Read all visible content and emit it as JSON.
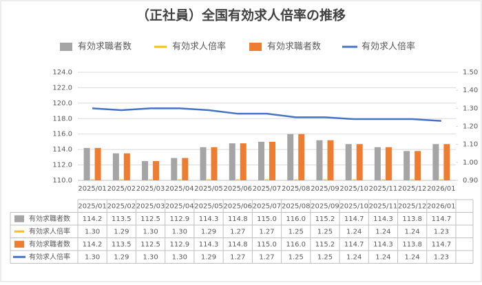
{
  "chart_data": {
    "type": "bar",
    "title": "（正社員）全国有効求人倍率の推移",
    "categories": [
      "2025/01",
      "2025/02",
      "2025/03",
      "2025/04",
      "2025/05",
      "2025/06",
      "2025/07",
      "2025/08",
      "2025/09",
      "2025/10",
      "2025/11",
      "2025/12",
      "2026/01"
    ],
    "series": [
      {
        "name": "有効求職者数",
        "color": "#a5a5a5",
        "type": "bar",
        "values": [
          114.2,
          113.5,
          112.5,
          112.9,
          114.3,
          114.8,
          115.0,
          116.0,
          115.2,
          114.7,
          114.3,
          113.8,
          114.7
        ],
        "value_labels": [
          "114.2",
          "113.5",
          "112.5",
          "112.9",
          "114.3",
          "114.8",
          "115.0",
          "116.0",
          "115.2",
          "114.7",
          "114.3",
          "113.8",
          "114.7"
        ]
      },
      {
        "name": "有効求人倍率",
        "color": "#ffc000",
        "type": "bar",
        "values": [
          1.3,
          1.29,
          1.3,
          1.3,
          1.29,
          1.27,
          1.27,
          1.25,
          1.25,
          1.24,
          1.24,
          1.24,
          1.23
        ],
        "value_labels": [
          "1.30",
          "1.29",
          "1.30",
          "1.30",
          "1.29",
          "1.27",
          "1.27",
          "1.25",
          "1.25",
          "1.24",
          "1.24",
          "1.24",
          "1.23"
        ]
      },
      {
        "name": "有効求職者数",
        "color": "#ed7d31",
        "type": "bar",
        "values": [
          114.2,
          113.5,
          112.5,
          112.9,
          114.3,
          114.8,
          115.0,
          116.0,
          115.2,
          114.7,
          114.3,
          113.8,
          114.7
        ],
        "value_labels": [
          "114.2",
          "113.5",
          "112.5",
          "112.9",
          "114.3",
          "114.8",
          "115.0",
          "116.0",
          "115.2",
          "114.7",
          "114.3",
          "113.8",
          "114.7"
        ]
      },
      {
        "name": "有効求人倍率",
        "color": "#4472c4",
        "type": "line",
        "axis": "y2",
        "values": [
          1.3,
          1.29,
          1.3,
          1.3,
          1.29,
          1.27,
          1.27,
          1.25,
          1.25,
          1.24,
          1.24,
          1.24,
          1.23
        ],
        "value_labels": [
          "1.30",
          "1.29",
          "1.30",
          "1.30",
          "1.29",
          "1.27",
          "1.27",
          "1.25",
          "1.25",
          "1.24",
          "1.24",
          "1.24",
          "1.23"
        ]
      }
    ],
    "ylim": [
      110,
      124
    ],
    "yticks": [
      {
        "value": 110,
        "label": "110.0"
      },
      {
        "value": 112,
        "label": "112.0"
      },
      {
        "value": 114,
        "label": "114.0"
      },
      {
        "value": 116,
        "label": "116.0"
      },
      {
        "value": 118,
        "label": "118.0"
      },
      {
        "value": 120,
        "label": "120.0"
      },
      {
        "value": 122,
        "label": "122.0"
      },
      {
        "value": 124,
        "label": "124.0"
      }
    ],
    "y2lim": [
      0.9,
      1.5
    ],
    "y2ticks": [
      {
        "value": 0.9,
        "label": "0.90"
      },
      {
        "value": 1.0,
        "label": "1.00"
      },
      {
        "value": 1.1,
        "label": "1.10"
      },
      {
        "value": 1.2,
        "label": "1.20"
      },
      {
        "value": 1.3,
        "label": "1.30"
      },
      {
        "value": 1.4,
        "label": "1.40"
      },
      {
        "value": 1.5,
        "label": "1.50"
      }
    ],
    "grid": true,
    "legend": "top"
  }
}
